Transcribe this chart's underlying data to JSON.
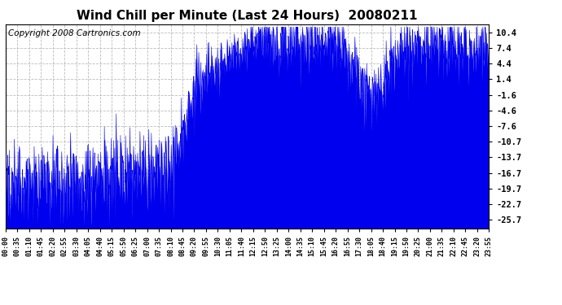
{
  "title": "Wind Chill per Minute (Last 24 Hours)  20080211",
  "copyright": "Copyright 2008 Cartronics.com",
  "line_color": "#0000ee",
  "bg_color": "#ffffff",
  "plot_bg_color": "#ffffff",
  "grid_color": "#bbbbbb",
  "yticks": [
    10.4,
    7.4,
    4.4,
    1.4,
    -1.6,
    -4.6,
    -7.6,
    -10.7,
    -13.7,
    -16.7,
    -19.7,
    -22.7,
    -25.7
  ],
  "ylim": [
    -27.5,
    12.0
  ],
  "xtick_labels": [
    "00:00",
    "00:35",
    "01:10",
    "01:45",
    "02:20",
    "02:55",
    "03:30",
    "04:05",
    "04:40",
    "05:15",
    "05:50",
    "06:25",
    "07:00",
    "07:35",
    "08:10",
    "08:45",
    "09:20",
    "09:55",
    "10:30",
    "11:05",
    "11:40",
    "12:15",
    "12:50",
    "13:25",
    "14:00",
    "14:35",
    "15:10",
    "15:45",
    "16:20",
    "16:55",
    "17:30",
    "18:05",
    "18:40",
    "19:15",
    "19:50",
    "20:25",
    "21:00",
    "21:35",
    "22:10",
    "22:45",
    "23:20",
    "23:55"
  ],
  "title_fontsize": 11,
  "copyright_fontsize": 7.5
}
